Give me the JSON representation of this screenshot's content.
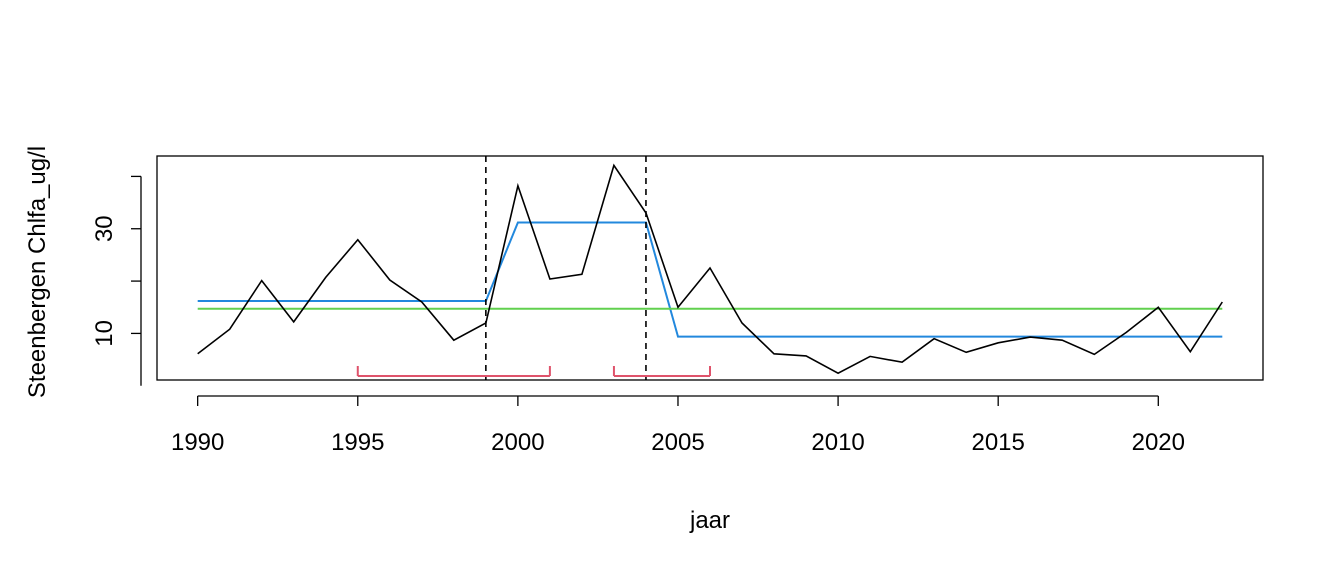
{
  "chart_data": {
    "type": "line",
    "title": "",
    "xlabel": "jaar",
    "ylabel": "Steenbergen Chlfa_ug/l",
    "xlim": [
      1988.73,
      2023.27
    ],
    "ylim": [
      1.1,
      43.9
    ],
    "xticks": [
      1990,
      1995,
      2000,
      2005,
      2010,
      2015,
      2020
    ],
    "yticks": [
      10,
      30
    ],
    "x": [
      1990,
      1991,
      1992,
      1993,
      1994,
      1995,
      1996,
      1997,
      1998,
      1999,
      2000,
      2001,
      2002,
      2003,
      2004,
      2005,
      2006,
      2007,
      2008,
      2009,
      2010,
      2011,
      2012,
      2013,
      2014,
      2015,
      2016,
      2017,
      2018,
      2019,
      2020,
      2021,
      2022
    ],
    "series": [
      {
        "color": "#000000",
        "values": [
          6.1,
          10.8,
          20.1,
          12.2,
          20.7,
          27.9,
          20.2,
          16.0,
          8.7,
          12.0,
          38.2,
          20.4,
          21.3,
          42.1,
          33.0,
          15.0,
          22.5,
          12.0,
          6.1,
          5.7,
          2.4,
          5.6,
          4.5,
          9.0,
          6.4,
          8.2,
          9.3,
          8.7,
          6.0,
          10.2,
          15.0,
          6.5,
          16.0
        ]
      }
    ],
    "segments": [
      {
        "color": "#2288dd",
        "points": [
          [
            1990,
            16.2
          ],
          [
            1999,
            16.2
          ],
          [
            2000,
            31.2
          ],
          [
            2004,
            31.2
          ],
          [
            2005,
            9.4
          ],
          [
            2022,
            9.4
          ]
        ]
      },
      {
        "color": "#61d04f",
        "points": [
          [
            1990,
            14.7
          ],
          [
            2022,
            14.7
          ]
        ]
      }
    ],
    "breakpoints": [
      1999,
      2004
    ],
    "confidence_intervals": [
      {
        "color": "#df536b",
        "from": 1995,
        "to": 2001
      },
      {
        "color": "#df536b",
        "from": 2003,
        "to": 2006
      }
    ]
  }
}
